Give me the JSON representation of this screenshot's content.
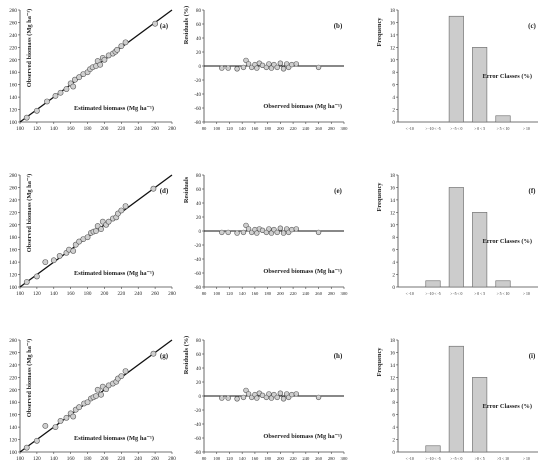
{
  "figure": {
    "rows": [
      {
        "panels": [
          "a",
          "b",
          "c"
        ]
      },
      {
        "panels": [
          "d",
          "e",
          "f"
        ]
      },
      {
        "panels": [
          "g",
          "h",
          "i"
        ]
      }
    ]
  },
  "colors": {
    "marker_fill": "#cfcfcf",
    "marker_stroke": "#555555",
    "bar_fill": "#cccccc",
    "bar_stroke": "#666666",
    "line": "#111111",
    "axis": "#444444"
  },
  "chart_data": [
    {
      "panel": "a",
      "label": "(a)",
      "type": "scatter",
      "ylabel": "Observed biomass (Mg ha⁻¹)",
      "xlabel": "Estimated biomass (Mg ha⁻¹)",
      "xlim": [
        100,
        280
      ],
      "ylim": [
        100,
        280
      ],
      "xticks": [
        100,
        120,
        140,
        160,
        180,
        200,
        220,
        240,
        260,
        280
      ],
      "yticks": [
        100,
        120,
        140,
        160,
        180,
        200,
        220,
        240,
        260,
        280
      ],
      "fit_line": [
        [
          100,
          100
        ],
        [
          280,
          280
        ]
      ],
      "x": [
        108,
        120,
        132,
        142,
        148,
        155,
        160,
        163,
        165,
        170,
        175,
        180,
        183,
        186,
        190,
        192,
        195,
        198,
        200,
        205,
        210,
        213,
        215,
        220,
        225,
        260
      ],
      "y": [
        107,
        118,
        133,
        142,
        147,
        153,
        162,
        157,
        168,
        172,
        177,
        180,
        185,
        188,
        190,
        198,
        192,
        203,
        200,
        207,
        210,
        213,
        216,
        222,
        228,
        258
      ]
    },
    {
      "panel": "b",
      "label": "(b)",
      "type": "scatter",
      "ylabel": "Residuals (%)",
      "xlabel": "Observed biomass (Mg ha⁻¹)",
      "xlim": [
        80,
        300
      ],
      "ylim": [
        -80,
        80
      ],
      "xticks": [
        80,
        100,
        120,
        140,
        160,
        180,
        200,
        220,
        240,
        260,
        280,
        300
      ],
      "yticks": [
        -80,
        -60,
        -40,
        -20,
        0,
        20,
        40,
        60,
        80
      ],
      "zero_line": true,
      "x": [
        108,
        118,
        132,
        142,
        146,
        150,
        155,
        160,
        163,
        167,
        172,
        178,
        182,
        186,
        190,
        195,
        200,
        205,
        210,
        213,
        218,
        225,
        260
      ],
      "y": [
        -3,
        -3,
        -4,
        -2,
        8,
        3,
        -2,
        2,
        -3,
        4,
        1,
        -2,
        3,
        -3,
        2,
        -2,
        4,
        -4,
        3,
        -2,
        2,
        3,
        -2
      ]
    },
    {
      "panel": "c",
      "label": "(c)",
      "type": "bar",
      "ylabel": "Frequency",
      "xlabel": "Error Classes (%)",
      "categories": [
        "< -10",
        "> -10 < -5",
        "> -5 < 0",
        "> 0 < 5",
        "> 5 < 10",
        "> 10"
      ],
      "values": [
        0,
        0,
        17,
        12,
        1,
        0
      ],
      "ylim": [
        0,
        18
      ],
      "yticks": [
        0,
        2,
        4,
        6,
        8,
        10,
        12,
        14,
        16,
        18
      ]
    },
    {
      "panel": "d",
      "label": "(d)",
      "type": "scatter",
      "ylabel": "Observed biomass (Mg ha⁻¹)",
      "xlabel": "Estimated biomass (Mg ha⁻¹)",
      "xlim": [
        100,
        280
      ],
      "ylim": [
        100,
        280
      ],
      "xticks": [
        100,
        120,
        140,
        160,
        180,
        200,
        220,
        240,
        260,
        280
      ],
      "yticks": [
        100,
        120,
        140,
        160,
        180,
        200,
        220,
        240,
        260,
        280
      ],
      "fit_line": [
        [
          100,
          100
        ],
        [
          280,
          280
        ]
      ],
      "x": [
        108,
        120,
        130,
        140,
        147,
        155,
        158,
        163,
        166,
        170,
        175,
        180,
        184,
        187,
        190,
        192,
        196,
        198,
        202,
        205,
        210,
        214,
        216,
        220,
        225,
        258
      ],
      "y": [
        108,
        117,
        140,
        143,
        150,
        155,
        160,
        158,
        168,
        173,
        177,
        180,
        187,
        189,
        190,
        198,
        193,
        205,
        200,
        205,
        210,
        212,
        218,
        223,
        230,
        258
      ]
    },
    {
      "panel": "e",
      "label": "(e)",
      "type": "scatter",
      "ylabel": "Residuals",
      "xlabel": "Observed biomass (Mg ha⁻¹)",
      "xlim": [
        80,
        300
      ],
      "ylim": [
        -80,
        80
      ],
      "xticks": [
        80,
        100,
        120,
        140,
        160,
        180,
        200,
        220,
        240,
        260,
        280,
        300
      ],
      "yticks": [
        -80,
        -60,
        -40,
        -20,
        0,
        20,
        40,
        60,
        80
      ],
      "zero_line": true,
      "x": [
        108,
        118,
        132,
        142,
        146,
        150,
        155,
        160,
        163,
        167,
        172,
        178,
        182,
        186,
        190,
        195,
        200,
        205,
        210,
        213,
        218,
        225,
        260
      ],
      "y": [
        -2,
        -2,
        -3,
        -2,
        8,
        3,
        -2,
        2,
        -3,
        3,
        1,
        -2,
        3,
        -3,
        2,
        -2,
        4,
        -3,
        3,
        -2,
        2,
        3,
        -2
      ]
    },
    {
      "panel": "f",
      "label": "(f)",
      "type": "bar",
      "ylabel": "Frequency",
      "xlabel": "Error Classes (%)",
      "categories": [
        "< -10",
        "> -10 < -5",
        "> -5 < 0",
        "> 0 < 5",
        "> 5 < 10",
        "> 10"
      ],
      "values": [
        0,
        1,
        16,
        12,
        1,
        0
      ],
      "ylim": [
        0,
        18
      ],
      "yticks": [
        0,
        2,
        4,
        6,
        8,
        10,
        12,
        14,
        16,
        18
      ]
    },
    {
      "panel": "g",
      "label": "(g)",
      "type": "scatter",
      "ylabel": "Observed biomass (Mg ha⁻¹)",
      "xlabel": "Estimated biomass (Mg ha⁻¹)",
      "xlim": [
        100,
        280
      ],
      "ylim": [
        100,
        280
      ],
      "xticks": [
        100,
        120,
        140,
        160,
        180,
        200,
        220,
        240,
        260,
        280
      ],
      "yticks": [
        100,
        120,
        140,
        160,
        180,
        200,
        220,
        240,
        260,
        280
      ],
      "fit_line": [
        [
          100,
          100
        ],
        [
          280,
          280
        ]
      ],
      "x": [
        108,
        120,
        130,
        142,
        148,
        155,
        160,
        163,
        166,
        170,
        176,
        180,
        184,
        187,
        190,
        192,
        196,
        198,
        202,
        205,
        210,
        214,
        216,
        220,
        225,
        258
      ],
      "y": [
        107,
        118,
        142,
        140,
        150,
        155,
        162,
        157,
        168,
        172,
        178,
        180,
        186,
        188,
        190,
        200,
        192,
        205,
        201,
        207,
        210,
        213,
        218,
        222,
        230,
        258
      ]
    },
    {
      "panel": "h",
      "label": "(h)",
      "type": "scatter",
      "ylabel": "Residuals (%)",
      "xlabel": "Observed biomass (Mg ha⁻¹)",
      "xlim": [
        80,
        300
      ],
      "ylim": [
        -80,
        80
      ],
      "xticks": [
        80,
        100,
        120,
        140,
        160,
        180,
        200,
        220,
        240,
        260,
        280,
        300
      ],
      "yticks": [
        -80,
        -60,
        -40,
        -20,
        0,
        20,
        40,
        60,
        80
      ],
      "zero_line": true,
      "x": [
        108,
        118,
        132,
        142,
        146,
        150,
        155,
        160,
        163,
        167,
        172,
        178,
        182,
        186,
        190,
        195,
        200,
        205,
        210,
        213,
        218,
        225,
        260
      ],
      "y": [
        -3,
        -3,
        -4,
        -2,
        8,
        3,
        -2,
        2,
        -3,
        4,
        1,
        -2,
        3,
        -3,
        2,
        -2,
        4,
        -4,
        3,
        -2,
        2,
        3,
        -2
      ]
    },
    {
      "panel": "i",
      "label": "(i)",
      "type": "bar",
      "ylabel": "Frequency",
      "xlabel": "Error Classes (%)",
      "categories": [
        "< -10",
        "> -10 < -5",
        "> -5 < 0",
        ">0 < 5",
        ">5 < 10",
        "> 10"
      ],
      "values": [
        0,
        1,
        17,
        12,
        0,
        0
      ],
      "ylim": [
        0,
        18
      ],
      "yticks": [
        0,
        2,
        4,
        6,
        8,
        10,
        12,
        14,
        16,
        18
      ]
    }
  ]
}
